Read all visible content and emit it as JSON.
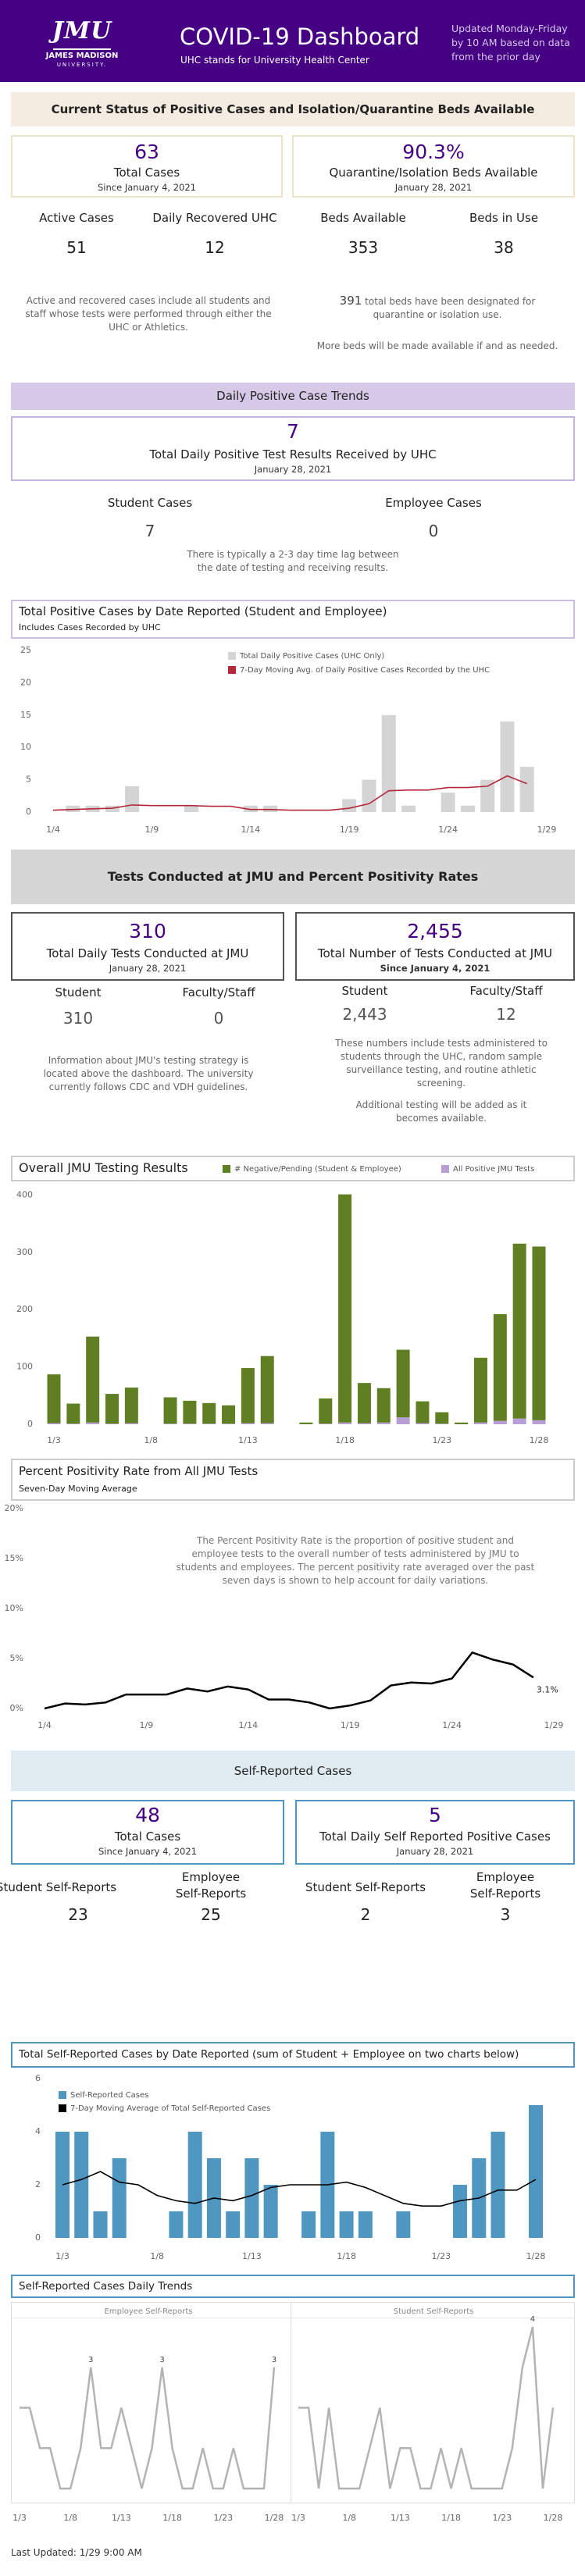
{
  "header": {
    "logo": {
      "mark": "JMU",
      "name": "JAMES MADISON",
      "sub": "UNIVERSITY."
    },
    "title": "COVID-19 Dashboard",
    "subtitle": "UHC stands for University Health Center",
    "update_note": "Updated Monday-Friday by 10 AM based on data from the prior day"
  },
  "status": {
    "banner": "Current Status of Positive Cases and Isolation/Quarantine Beds Available",
    "cards": [
      {
        "value": "63",
        "label": "Total Cases",
        "date": "Since January 4, 2021"
      },
      {
        "value": "90.3%",
        "label": "Quarantine/Isolation Beds Available",
        "date": "January 28, 2021"
      }
    ],
    "stats": [
      {
        "label": "Active Cases",
        "value": "51"
      },
      {
        "label": "Daily Recovered UHC",
        "value": "12"
      },
      {
        "label": "Beds Available",
        "value": "353"
      },
      {
        "label": "Beds in Use",
        "value": "38"
      }
    ],
    "note": "Active and recovered cases include all students and staff whose tests were performed through either the UHC or Athletics.",
    "beds_total": "391",
    "beds_note": "total beds have been designated for quarantine or isolation use.",
    "beds_more": "More beds will be made available if and as needed."
  },
  "daily": {
    "banner": "Daily Positive Case Trends",
    "card": {
      "value": "7",
      "label": "Total Daily Positive Test Results Received by UHC",
      "date": "January 28, 2021"
    },
    "stats": [
      {
        "label": "Student Cases",
        "value": "7"
      },
      {
        "label": "Employee Cases",
        "value": "0"
      }
    ],
    "note": "There is typically a 2-3 day time lag between the date of testing and receiving results."
  },
  "tests": {
    "banner": "Tests Conducted at JMU and Percent Positivity Rates",
    "cards": [
      {
        "value": "310",
        "label": "Total Daily Tests Conducted at JMU",
        "date": "January 28, 2021",
        "stats": [
          {
            "label": "Student",
            "value": "310"
          },
          {
            "label": "Faculty/Staff",
            "value": "0"
          }
        ]
      },
      {
        "value": "2,455",
        "label": "Total Number of Tests Conducted at JMU",
        "date": "Since January 4, 2021",
        "stats": [
          {
            "label": "Student",
            "value": "2,443"
          },
          {
            "label": "Faculty/Staff",
            "value": "12"
          }
        ]
      }
    ],
    "note_left": "Information about JMU's testing strategy is located above the dashboard. The university currently follows CDC and VDH guidelines.",
    "note_right": "These numbers include tests administered to students through the UHC, random sample surveillance testing, and routine athletic screening.",
    "note_more": "Additional testing will be added as it becomes available."
  },
  "self": {
    "banner": "Self-Reported Cases",
    "cards": [
      {
        "value": "48",
        "label": "Total Cases",
        "date": "Since January 4, 2021",
        "stats": [
          {
            "label": "Student Self-Reports",
            "value": "23"
          },
          {
            "label": "Employee Self-Reports",
            "value": "25"
          }
        ]
      },
      {
        "value": "5",
        "label": "Total Daily Self Reported Positive Cases",
        "date": "January 28, 2021",
        "stats": [
          {
            "label": "Student Self-Reports",
            "value": "2"
          },
          {
            "label": "Employee Self-Reports",
            "value": "3"
          }
        ]
      }
    ]
  },
  "footer": "Last Updated: 1/29 9:00 AM",
  "chart_data": [
    {
      "type": "bar",
      "title": "Total Positive Cases by Date Reported (Student and Employee)",
      "subtitle": "Includes Cases Recorded by UHC",
      "categories": [
        "1/4",
        null,
        null,
        null,
        null,
        "1/9",
        null,
        null,
        null,
        null,
        "1/14",
        null,
        null,
        null,
        null,
        "1/19",
        null,
        null,
        null,
        null,
        "1/24",
        null,
        null,
        null,
        null,
        "1/29"
      ],
      "series": [
        {
          "name": "Total Daily Positive Cases (UHC Only)",
          "color": "#d4d4d4",
          "values": [
            0,
            1,
            1,
            1,
            4,
            0,
            0,
            1,
            0,
            0,
            1,
            1,
            0,
            0,
            0,
            2,
            5,
            15,
            1,
            0,
            3,
            1,
            5,
            14,
            7,
            null
          ]
        },
        {
          "name": "7-Day Moving Avg. of Daily Positive Cases Recorded by the UHC",
          "type": "line",
          "color": "#b5283b",
          "values": [
            0.3,
            0.4,
            0.5,
            0.6,
            1.1,
            1.0,
            1.0,
            1.0,
            0.9,
            0.9,
            0.4,
            0.4,
            0.3,
            0.3,
            0.3,
            0.6,
            1.3,
            3.3,
            3.4,
            3.4,
            3.8,
            3.8,
            4.0,
            5.6,
            4.4,
            null
          ]
        }
      ],
      "ylim": [
        0,
        25
      ],
      "yticks": [
        0,
        5,
        10,
        15,
        20,
        25
      ],
      "grid": false
    },
    {
      "type": "bar",
      "title": "Overall JMU Testing Results",
      "stacked": true,
      "categories": [
        "1/3",
        null,
        null,
        null,
        null,
        "1/8",
        null,
        null,
        null,
        null,
        "1/13",
        null,
        null,
        null,
        null,
        "1/18",
        null,
        null,
        null,
        null,
        "1/23",
        null,
        null,
        null,
        null,
        "1/28"
      ],
      "series": [
        {
          "name": "# Negative/Pending (Student & Employee)",
          "color": "#5f7f22",
          "values": [
            85,
            35,
            150,
            52,
            62,
            0,
            46,
            40,
            36,
            32,
            96,
            117,
            0,
            3,
            44,
            398,
            70,
            60,
            118,
            38,
            20,
            3,
            113,
            186,
            305,
            303
          ]
        },
        {
          "name": "All Positive JMU Tests",
          "color": "#b79fd6",
          "values": [
            2,
            1,
            3,
            1,
            2,
            0,
            1,
            1,
            1,
            1,
            2,
            2,
            0,
            0,
            1,
            3,
            2,
            3,
            12,
            2,
            1,
            0,
            3,
            6,
            10,
            7
          ]
        }
      ],
      "ylim": [
        0,
        410
      ],
      "yticks": [
        0,
        100,
        200,
        300,
        400
      ],
      "grid": false
    },
    {
      "type": "line",
      "title": "Percent Positivity Rate from All JMU Tests",
      "subtitle": "Seven-Day Moving Average",
      "annotation": "The Percent Positivity Rate is the proportion of positive student and employee tests to the overall number of tests administered by JMU to students and employees.  The percent positivity rate averaged over the past seven days is shown to help account for daily variations.",
      "categories": [
        "1/4",
        null,
        null,
        null,
        null,
        "1/9",
        null,
        null,
        null,
        null,
        "1/14",
        null,
        null,
        null,
        null,
        "1/19",
        null,
        null,
        null,
        null,
        "1/24",
        null,
        null,
        null,
        null,
        "1/29"
      ],
      "series": [
        {
          "name": "Percent Positivity Rate",
          "color": "#000000",
          "values": [
            0,
            0.5,
            0.4,
            0.6,
            1.4,
            1.4,
            1.4,
            2.0,
            1.7,
            2.2,
            1.9,
            0.9,
            0.9,
            0.6,
            0.0,
            0.3,
            0.8,
            2.3,
            2.6,
            2.5,
            3.0,
            5.6,
            4.9,
            4.4,
            3.1,
            null
          ],
          "value_labels": [
            null,
            null,
            null,
            null,
            null,
            null,
            null,
            null,
            null,
            null,
            null,
            null,
            null,
            null,
            null,
            null,
            null,
            null,
            null,
            null,
            null,
            null,
            null,
            null,
            "3.1%",
            null
          ]
        }
      ],
      "ylim": [
        0,
        20
      ],
      "yticks": [
        {
          "value": 0,
          "label": "0%"
        },
        {
          "value": 5,
          "label": "5%"
        },
        {
          "value": 10,
          "label": "10%"
        },
        {
          "value": 15,
          "label": "15%"
        },
        {
          "value": 20,
          "label": "20%"
        }
      ],
      "grid": false
    },
    {
      "type": "bar",
      "title": "Total Self-Reported Cases by Date Reported (sum of Student + Employee on two charts below)",
      "categories": [
        "1/3",
        null,
        null,
        null,
        null,
        "1/8",
        null,
        null,
        null,
        null,
        "1/13",
        null,
        null,
        null,
        null,
        "1/18",
        null,
        null,
        null,
        null,
        "1/23",
        null,
        null,
        null,
        null,
        "1/28"
      ],
      "series": [
        {
          "name": "Self-Reported Cases",
          "color": "#4f97c1",
          "values": [
            4,
            4,
            1,
            3,
            0,
            0,
            1,
            4,
            3,
            1,
            3,
            2,
            0,
            1,
            4,
            1,
            1,
            0,
            1,
            0,
            0,
            2,
            3,
            4,
            0,
            5
          ]
        },
        {
          "name": "7-Day Moving Average of Total Self-Reported Cases",
          "type": "line",
          "color": "#000000",
          "values": [
            2.0,
            2.2,
            2.5,
            2.1,
            2.0,
            1.6,
            1.4,
            1.3,
            1.5,
            1.4,
            1.6,
            1.9,
            2.0,
            2.0,
            2.0,
            2.1,
            1.9,
            1.6,
            1.3,
            1.2,
            1.2,
            1.4,
            1.5,
            1.8,
            1.8,
            2.2
          ]
        }
      ],
      "ylim": [
        0,
        6
      ],
      "yticks": [
        0,
        2,
        4,
        6
      ],
      "grid": false
    },
    {
      "type": "line",
      "title": "Self-Reported Cases Daily Trends",
      "layout": "small-multiples",
      "categories": [
        "1/3",
        null,
        null,
        null,
        null,
        "1/8",
        null,
        null,
        null,
        null,
        "1/13",
        null,
        null,
        null,
        null,
        "1/18",
        null,
        null,
        null,
        null,
        "1/23",
        null,
        null,
        null,
        null,
        "1/28"
      ],
      "series": [
        {
          "name": "Employee Self-Reports",
          "color": "#b3b3b3",
          "values": [
            2,
            2,
            1,
            1,
            0,
            0,
            1,
            3,
            1,
            1,
            2,
            1,
            0,
            1,
            3,
            1,
            0,
            0,
            1,
            0,
            0,
            1,
            0,
            0,
            0,
            3
          ]
        },
        {
          "name": "Student Self-Reports",
          "color": "#b3b3b3",
          "values": [
            2,
            2,
            0,
            2,
            0,
            0,
            0,
            1,
            2,
            0,
            1,
            1,
            0,
            0,
            1,
            0,
            1,
            0,
            0,
            0,
            0,
            1,
            3,
            4,
            0,
            2
          ]
        }
      ],
      "ylim": [
        0,
        4
      ]
    }
  ]
}
